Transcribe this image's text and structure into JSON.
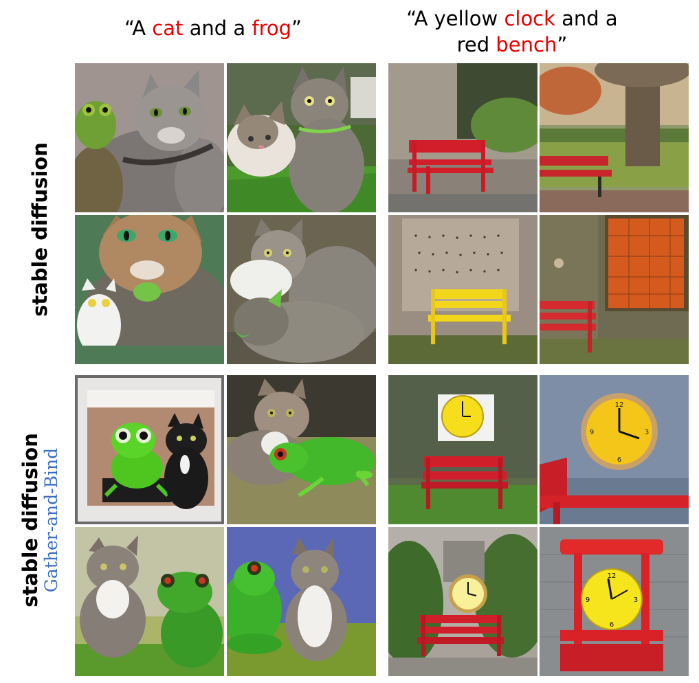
{
  "captions": {
    "left": {
      "pre": "“A ",
      "w1": "cat",
      "mid": " and a ",
      "w2": "frog",
      "post": "”"
    },
    "right": {
      "line1_pre": "“A yellow ",
      "line1_w": "clock",
      "line1_post": " and a",
      "line2_pre": "red ",
      "line2_w": "bench",
      "line2_post": "”"
    }
  },
  "row_labels": {
    "top": {
      "main": "stable diffusion"
    },
    "bottom": {
      "main": "stable diffusion",
      "sub": "Gather-and-Bind"
    }
  },
  "images": {
    "sd_cat_frog": [
      "cat with frog on shoulder",
      "two cats on grass",
      "cartoon cat with frog",
      "two cats lying down"
    ],
    "sd_clock_bench": [
      "red bench by brick wall",
      "red bench under tree",
      "yellow bench by wall",
      "red bench under window"
    ],
    "gb_cat_frog": [
      "framed frog and black cat",
      "cat with green frog",
      "cat and frog on grass",
      "frog and cat on blue"
    ],
    "gb_clock_bench": [
      "yellow clock above red bench",
      "yellow clock with red bench",
      "yellow clock on red bench in bushes",
      "yellow clock on red chair"
    ]
  },
  "colors": {
    "highlight": "#e60000",
    "gb_label": "#3a6fc4"
  }
}
